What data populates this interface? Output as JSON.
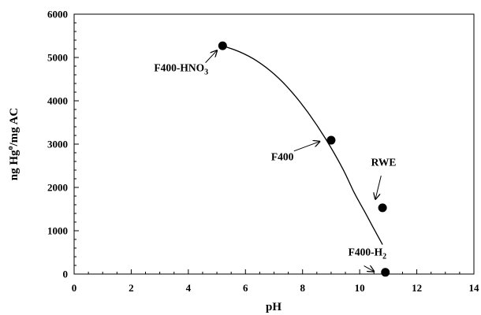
{
  "chart_data": {
    "type": "scatter",
    "xlabel": "pH",
    "ylabel_parts": [
      "ng Hg",
      "o",
      "/mg AC"
    ],
    "xlim": [
      0,
      14
    ],
    "ylim": [
      0,
      6000
    ],
    "x_ticks": [
      "0",
      "2",
      "4",
      "6",
      "8",
      "10",
      "12",
      "14"
    ],
    "y_ticks": [
      "0",
      "1000",
      "2000",
      "3000",
      "4000",
      "5000",
      "6000"
    ],
    "grid": false,
    "legend": "none",
    "marker_color": "#000000",
    "points": [
      {
        "x": 5.2,
        "y": 5270
      },
      {
        "x": 9.0,
        "y": 3090
      },
      {
        "x": 10.8,
        "y": 1530
      },
      {
        "x": 10.9,
        "y": 40
      }
    ],
    "trend_curve": {
      "x": [
        5.2,
        5.8,
        6.4,
        7.0,
        7.6,
        8.2,
        8.8,
        9.4,
        9.8,
        10.2,
        10.5,
        10.8
      ],
      "y": [
        5270,
        5130,
        4920,
        4620,
        4220,
        3720,
        3130,
        2440,
        1890,
        1410,
        1040,
        680
      ]
    },
    "annotations": [
      {
        "id": "f400-hno3",
        "parts": [
          "F400-HNO",
          "3"
        ],
        "text_x": 2.8,
        "text_y": 4680,
        "arrow_from": [
          4.6,
          4880
        ],
        "arrow_to": [
          5.0,
          5160
        ]
      },
      {
        "id": "f400",
        "parts": [
          "F400"
        ],
        "text_x": 6.9,
        "text_y": 2630,
        "arrow_from": [
          7.7,
          2840
        ],
        "arrow_to": [
          8.6,
          3060
        ]
      },
      {
        "id": "rwe",
        "parts": [
          "RWE"
        ],
        "text_x": 10.4,
        "text_y": 2500,
        "arrow_from": [
          10.75,
          2270
        ],
        "arrow_to": [
          10.55,
          1730
        ]
      },
      {
        "id": "f400-h2",
        "parts": [
          "F400-H",
          "2"
        ],
        "text_x": 9.6,
        "text_y": 430,
        "arrow_from": [
          10.15,
          190
        ],
        "arrow_to": [
          10.5,
          60
        ]
      }
    ]
  }
}
